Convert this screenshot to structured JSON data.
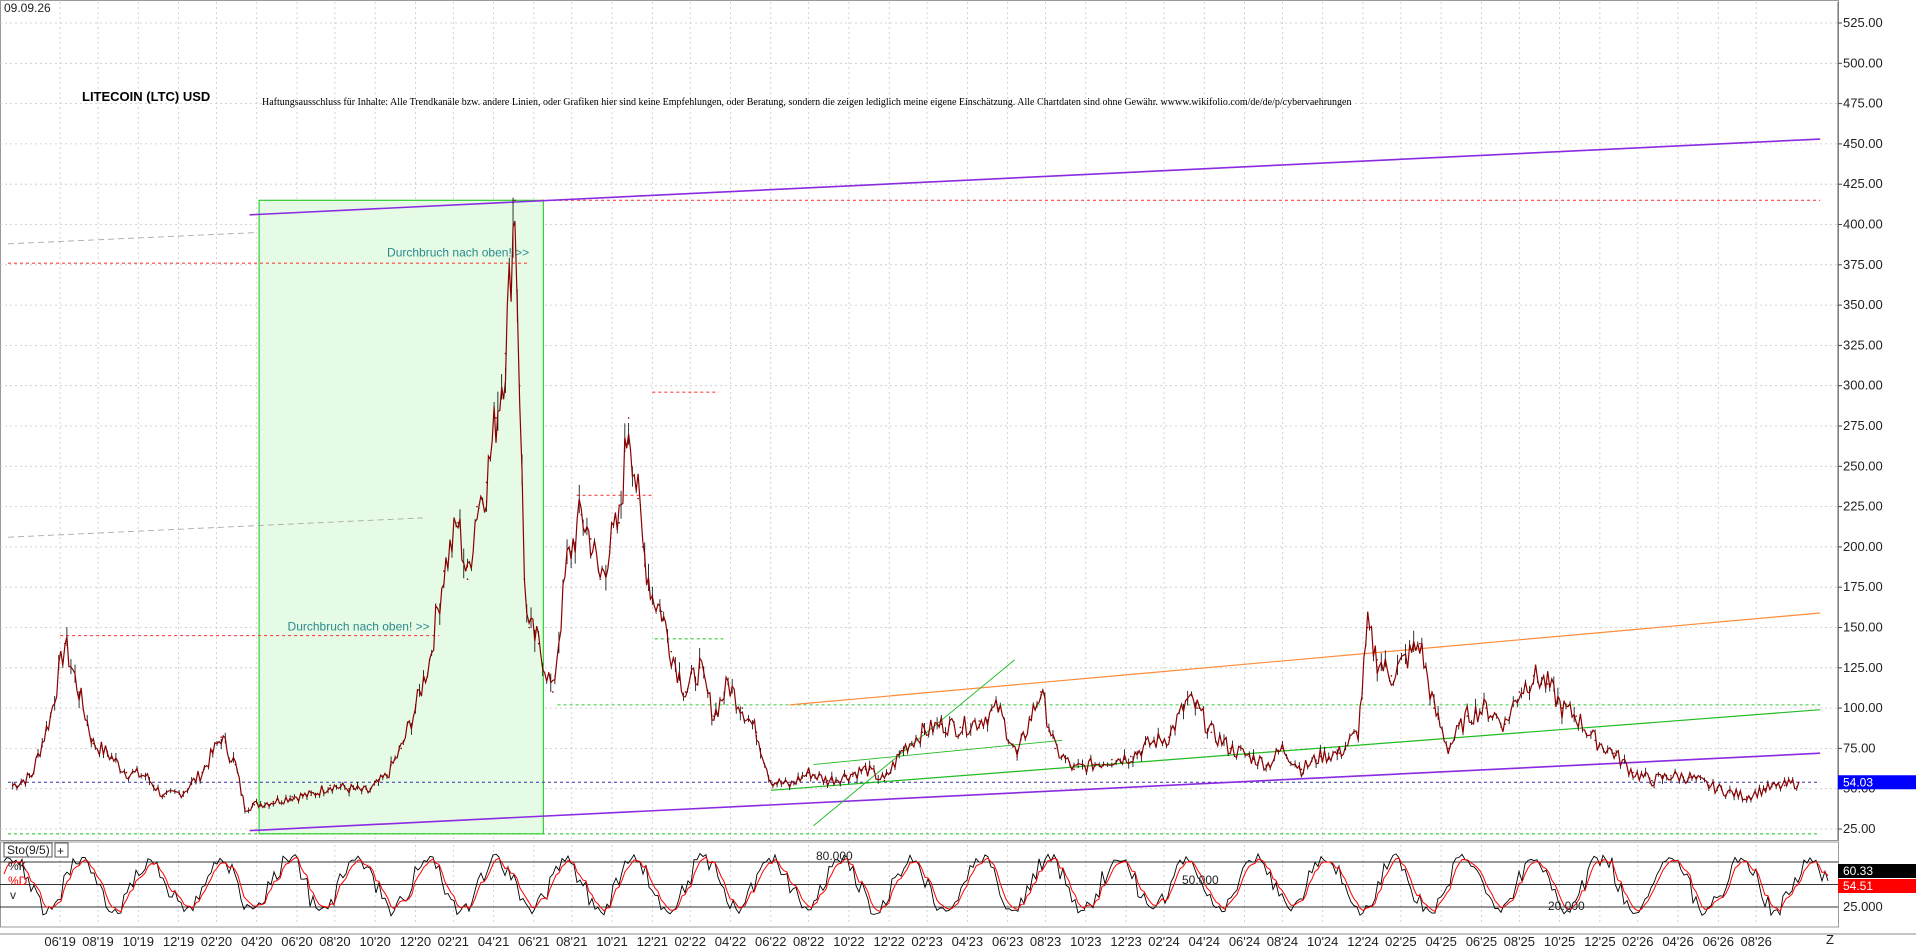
{
  "chart_data": {
    "type": "line",
    "title": "LITECOIN (LTC) USD",
    "date_label": "09.09.26",
    "disclaimer": "Haftungsausschluss für Inhalte: Alle Trendkanäle bzw. andere Linien, oder Grafiken hier sind keine Empfehlungen, oder Beratung, sondern die zeigen lediglich meine eigene Einschätzung. Alle Chartdaten sind ohne Gewähr. wwww.wikifolio.com/de/de/p/cybervaehrungen",
    "ylim": [
      0,
      540
    ],
    "y_ticks": [
      25,
      50,
      75,
      100,
      125,
      150,
      175,
      200,
      225,
      250,
      275,
      300,
      325,
      350,
      375,
      400,
      425,
      450,
      475,
      500,
      525
    ],
    "y_tick_labels": [
      "25.00",
      "50.00",
      "75.00",
      "100.00",
      "125.00",
      "150.00",
      "175.00",
      "200.00",
      "225.00",
      "250.00",
      "275.00",
      "300.00",
      "325.00",
      "350.00",
      "375.00",
      "400.00",
      "425.00",
      "450.00",
      "475.00",
      "500.00",
      "525.00"
    ],
    "x_range": [
      2019.2,
      2026.9
    ],
    "x_ticks": [
      {
        "label": "06'19",
        "t": 2019.42
      },
      {
        "label": "08'19",
        "t": 2019.58
      },
      {
        "label": "10'19",
        "t": 2019.75
      },
      {
        "label": "12'19",
        "t": 2019.92
      },
      {
        "label": "02'20",
        "t": 2020.08
      },
      {
        "label": "04'20",
        "t": 2020.25
      },
      {
        "label": "06'20",
        "t": 2020.42
      },
      {
        "label": "08'20",
        "t": 2020.58
      },
      {
        "label": "10'20",
        "t": 2020.75
      },
      {
        "label": "12'20",
        "t": 2020.92
      },
      {
        "label": "02'21",
        "t": 2021.08
      },
      {
        "label": "04'21",
        "t": 2021.25
      },
      {
        "label": "06'21",
        "t": 2021.42
      },
      {
        "label": "08'21",
        "t": 2021.58
      },
      {
        "label": "10'21",
        "t": 2021.75
      },
      {
        "label": "12'21",
        "t": 2021.92
      },
      {
        "label": "02'22",
        "t": 2022.08
      },
      {
        "label": "04'22",
        "t": 2022.25
      },
      {
        "label": "06'22",
        "t": 2022.42
      },
      {
        "label": "08'22",
        "t": 2022.58
      },
      {
        "label": "10'22",
        "t": 2022.75
      },
      {
        "label": "12'22",
        "t": 2022.92
      },
      {
        "label": "02'23",
        "t": 2023.08
      },
      {
        "label": "04'23",
        "t": 2023.25
      },
      {
        "label": "06'23",
        "t": 2023.42
      },
      {
        "label": "08'23",
        "t": 2023.58
      },
      {
        "label": "10'23",
        "t": 2023.75
      },
      {
        "label": "12'23",
        "t": 2023.92
      },
      {
        "label": "02'24",
        "t": 2024.08
      },
      {
        "label": "04'24",
        "t": 2024.25
      },
      {
        "label": "06'24",
        "t": 2024.42
      },
      {
        "label": "08'24",
        "t": 2024.58
      },
      {
        "label": "10'24",
        "t": 2024.75
      },
      {
        "label": "12'24",
        "t": 2024.92
      },
      {
        "label": "02'25",
        "t": 2025.08
      },
      {
        "label": "04'25",
        "t": 2025.25
      },
      {
        "label": "06'25",
        "t": 2025.42
      },
      {
        "label": "08'25",
        "t": 2025.58
      },
      {
        "label": "10'25",
        "t": 2025.75
      },
      {
        "label": "12'25",
        "t": 2025.92
      },
      {
        "label": "02'26",
        "t": 2026.08
      },
      {
        "label": "04'26",
        "t": 2026.25
      },
      {
        "label": "06'26",
        "t": 2026.42
      },
      {
        "label": "08'26",
        "t": 2026.58
      }
    ],
    "x_end_label": "Z",
    "series": [
      {
        "name": "LTC",
        "color": "#8b0000",
        "t": [
          2019.22,
          2019.3,
          2019.38,
          2019.44,
          2019.5,
          2019.56,
          2019.62,
          2019.7,
          2019.78,
          2019.86,
          2019.94,
          2020.02,
          2020.1,
          2020.16,
          2020.2,
          2020.24,
          2020.32,
          2020.4,
          2020.48,
          2020.56,
          2020.64,
          2020.72,
          2020.8,
          2020.86,
          2020.92,
          2020.98,
          2021.04,
          2021.1,
          2021.14,
          2021.18,
          2021.22,
          2021.26,
          2021.3,
          2021.34,
          2021.36,
          2021.38,
          2021.4,
          2021.44,
          2021.5,
          2021.56,
          2021.62,
          2021.66,
          2021.7,
          2021.74,
          2021.78,
          2021.82,
          2021.86,
          2021.88,
          2021.92,
          2021.96,
          2022.0,
          2022.06,
          2022.12,
          2022.18,
          2022.24,
          2022.3,
          2022.36,
          2022.42,
          2022.5,
          2022.58,
          2022.66,
          2022.74,
          2022.82,
          2022.9,
          2022.98,
          2023.06,
          2023.14,
          2023.22,
          2023.3,
          2023.38,
          2023.46,
          2023.52,
          2023.56,
          2023.62,
          2023.7,
          2023.78,
          2023.86,
          2023.94,
          2024.02,
          2024.1,
          2024.18,
          2024.22,
          2024.28,
          2024.36,
          2024.44,
          2024.52,
          2024.58,
          2024.66,
          2024.74,
          2024.82,
          2024.9,
          2024.94,
          2024.98,
          2025.04,
          2025.1,
          2025.16,
          2025.22,
          2025.28,
          2025.36,
          2025.44,
          2025.52,
          2025.58,
          2025.64,
          2025.7,
          2025.76,
          2025.82,
          2025.9,
          2025.98,
          2026.06,
          2026.14,
          2026.22,
          2026.3,
          2026.38,
          2026.46,
          2026.54,
          2026.62,
          2026.7,
          2026.76
        ],
        "values": [
          52,
          58,
          95,
          140,
          110,
          78,
          72,
          60,
          58,
          45,
          48,
          60,
          82,
          65,
          38,
          40,
          42,
          45,
          46,
          52,
          50,
          48,
          58,
          75,
          100,
          130,
          185,
          215,
          180,
          225,
          240,
          280,
          320,
          415,
          300,
          180,
          150,
          140,
          110,
          190,
          220,
          205,
          180,
          200,
          215,
          280,
          230,
          200,
          170,
          160,
          135,
          110,
          125,
          95,
          115,
          100,
          85,
          55,
          52,
          60,
          55,
          58,
          62,
          55,
          75,
          85,
          90,
          88,
          92,
          100,
          70,
          95,
          110,
          75,
          62,
          65,
          68,
          70,
          78,
          82,
          105,
          100,
          85,
          75,
          70,
          65,
          75,
          62,
          70,
          72,
          85,
          150,
          130,
          120,
          130,
          140,
          100,
          75,
          95,
          100,
          90,
          110,
          120,
          115,
          100,
          95,
          80,
          72,
          60,
          55,
          58,
          57,
          52,
          48,
          45,
          50,
          52,
          54
        ]
      }
    ],
    "reference_lines": [
      {
        "y": 415,
        "t1": 2021.45,
        "t2": 2026.85,
        "color": "#ff4444",
        "style": "dotted"
      },
      {
        "y": 376,
        "t1": 2019.2,
        "t2": 2021.4,
        "color": "#ff4444",
        "style": "dotted"
      },
      {
        "y": 145,
        "t1": 2019.42,
        "t2": 2021.02,
        "color": "#ff4444",
        "style": "dotted"
      },
      {
        "y": 232,
        "t1": 2021.6,
        "t2": 2021.92,
        "color": "#ff4444",
        "style": "dotted"
      },
      {
        "y": 296,
        "t1": 2021.92,
        "t2": 2022.2,
        "color": "#ff4444",
        "style": "dotted"
      },
      {
        "y": 54,
        "t1": 2019.2,
        "t2": 2026.85,
        "color": "#3333aa",
        "style": "dotted"
      },
      {
        "y": 102,
        "t1": 2021.52,
        "t2": 2026.85,
        "color": "#33cc33",
        "style": "dotted"
      },
      {
        "y": 143,
        "t1": 2021.93,
        "t2": 2022.22,
        "color": "#33cc33",
        "style": "dotted"
      },
      {
        "y": 22,
        "t1": 2019.2,
        "t2": 2026.85,
        "color": "#33cc33",
        "style": "dotted"
      }
    ],
    "trend_lines": [
      {
        "t1": 2020.22,
        "y1": 406,
        "t2": 2026.85,
        "y2": 453,
        "color": "#8a2be2",
        "width": 1.6
      },
      {
        "t1": 2020.22,
        "y1": 24,
        "t2": 2026.85,
        "y2": 72,
        "color": "#8a2be2",
        "width": 1.6
      },
      {
        "t1": 2022.5,
        "y1": 102,
        "t2": 2026.85,
        "y2": 159,
        "color": "#ff8c3a",
        "width": 1.2
      },
      {
        "t1": 2022.42,
        "y1": 49,
        "t2": 2026.85,
        "y2": 99,
        "color": "#22bb22",
        "width": 1.2
      },
      {
        "t1": 2022.6,
        "y1": 27,
        "t2": 2023.45,
        "y2": 130,
        "color": "#22bb22",
        "width": 0.9
      },
      {
        "t1": 2022.6,
        "y1": 65,
        "t2": 2023.65,
        "y2": 80,
        "color": "#22bb22",
        "width": 0.9
      },
      {
        "t1": 2019.2,
        "y1": 388,
        "t2": 2020.25,
        "y2": 395,
        "color": "#aaaaaa",
        "width": 0.9
      },
      {
        "t1": 2019.2,
        "y1": 206,
        "t2": 2020.95,
        "y2": 218,
        "color": "#aaaaaa",
        "width": 0.9
      }
    ],
    "highlight_box": {
      "t1": 2020.26,
      "t2": 2021.46,
      "y1": 22,
      "y2": 415
    },
    "annotations": [
      {
        "text": "Durchbruch nach oben! >>",
        "t": 2021.4,
        "y": 380
      },
      {
        "text": "Durchbruch nach oben! >>",
        "t": 2020.98,
        "y": 148
      }
    ],
    "last_price": "54.03"
  },
  "oscillator": {
    "label": "Sto(9/5)",
    "k_label": "%K",
    "d_label": "%D",
    "v_label": "v",
    "levels": [
      {
        "value": 80,
        "label": "80.000"
      },
      {
        "value": 50,
        "label": "50.000"
      },
      {
        "value": 20,
        "label": "20.000"
      }
    ],
    "axis_label": "25.000",
    "k_value": "60.33",
    "d_value": "54.51",
    "k_color": "#000000",
    "d_color": "#ff0000"
  },
  "colors": {
    "grid": "#c8c8c8",
    "price": "#8b0000",
    "box_fill": "#e6fbe6",
    "box_stroke": "#33cc33",
    "last_price_badge": "#0000ff"
  }
}
